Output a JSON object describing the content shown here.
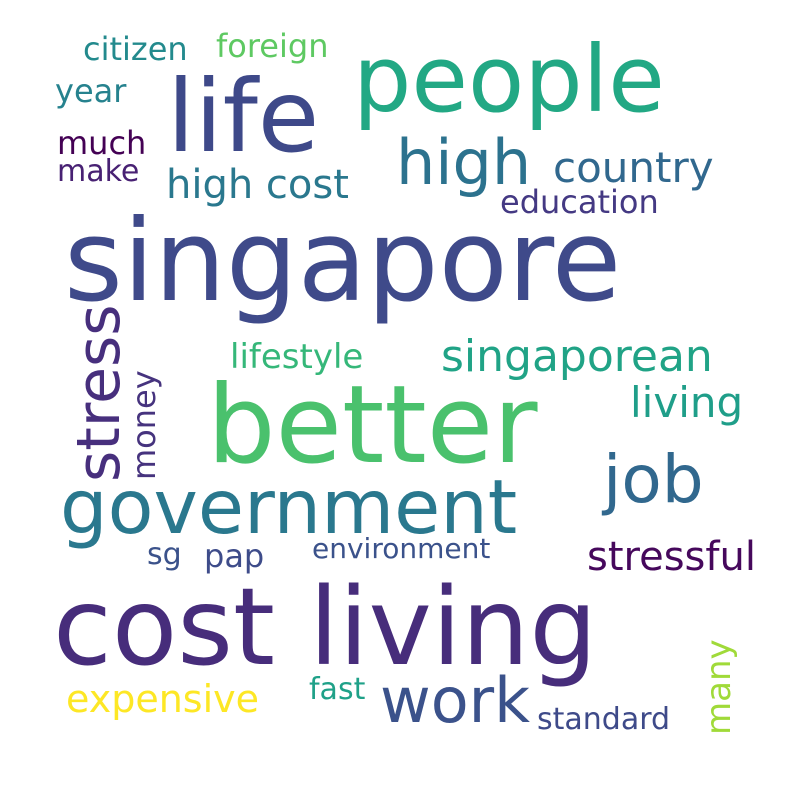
{
  "words": [
    {
      "id": "singapore",
      "text": "singapore",
      "color": "#3f4a8a"
    },
    {
      "id": "cost-living",
      "text": "cost living",
      "color": "#472d7b"
    },
    {
      "id": "better",
      "text": "better",
      "color": "#4ac16d"
    },
    {
      "id": "people",
      "text": "people",
      "color": "#22a884"
    },
    {
      "id": "life",
      "text": "life",
      "color": "#3e4989"
    },
    {
      "id": "government",
      "text": "government",
      "color": "#2a788e"
    },
    {
      "id": "high",
      "text": "high",
      "color": "#2c728e"
    },
    {
      "id": "job",
      "text": "job",
      "color": "#31688e"
    },
    {
      "id": "work",
      "text": "work",
      "color": "#3b528b"
    },
    {
      "id": "stress",
      "text": "stress",
      "color": "#472f7d"
    },
    {
      "id": "singaporean",
      "text": "singaporean",
      "color": "#20a386"
    },
    {
      "id": "country",
      "text": "country",
      "color": "#31688e"
    },
    {
      "id": "high-cost",
      "text": "high cost",
      "color": "#2a788e"
    },
    {
      "id": "expensive",
      "text": "expensive",
      "color": "#fde725"
    },
    {
      "id": "stressful",
      "text": "stressful",
      "color": "#46085c"
    },
    {
      "id": "living",
      "text": "living",
      "color": "#1f9e89"
    },
    {
      "id": "lifestyle",
      "text": "lifestyle",
      "color": "#35b779"
    },
    {
      "id": "standard",
      "text": "standard",
      "color": "#3e4a89"
    },
    {
      "id": "many",
      "text": "many",
      "color": "#a0da39"
    },
    {
      "id": "education",
      "text": "education",
      "color": "#443983"
    },
    {
      "id": "environment",
      "text": "environment",
      "color": "#3b528b"
    },
    {
      "id": "pap",
      "text": "pap",
      "color": "#3e4c8a"
    },
    {
      "id": "money",
      "text": "money",
      "color": "#46337e"
    },
    {
      "id": "citizen",
      "text": "citizen",
      "color": "#238a8d"
    },
    {
      "id": "foreign",
      "text": "foreign",
      "color": "#5ec962"
    },
    {
      "id": "year",
      "text": "year",
      "color": "#26828e"
    },
    {
      "id": "much",
      "text": "much",
      "color": "#440154"
    },
    {
      "id": "make",
      "text": "make",
      "color": "#482173"
    },
    {
      "id": "sg",
      "text": "sg",
      "color": "#3b528b"
    },
    {
      "id": "fast",
      "text": "fast",
      "color": "#1fa188"
    }
  ]
}
